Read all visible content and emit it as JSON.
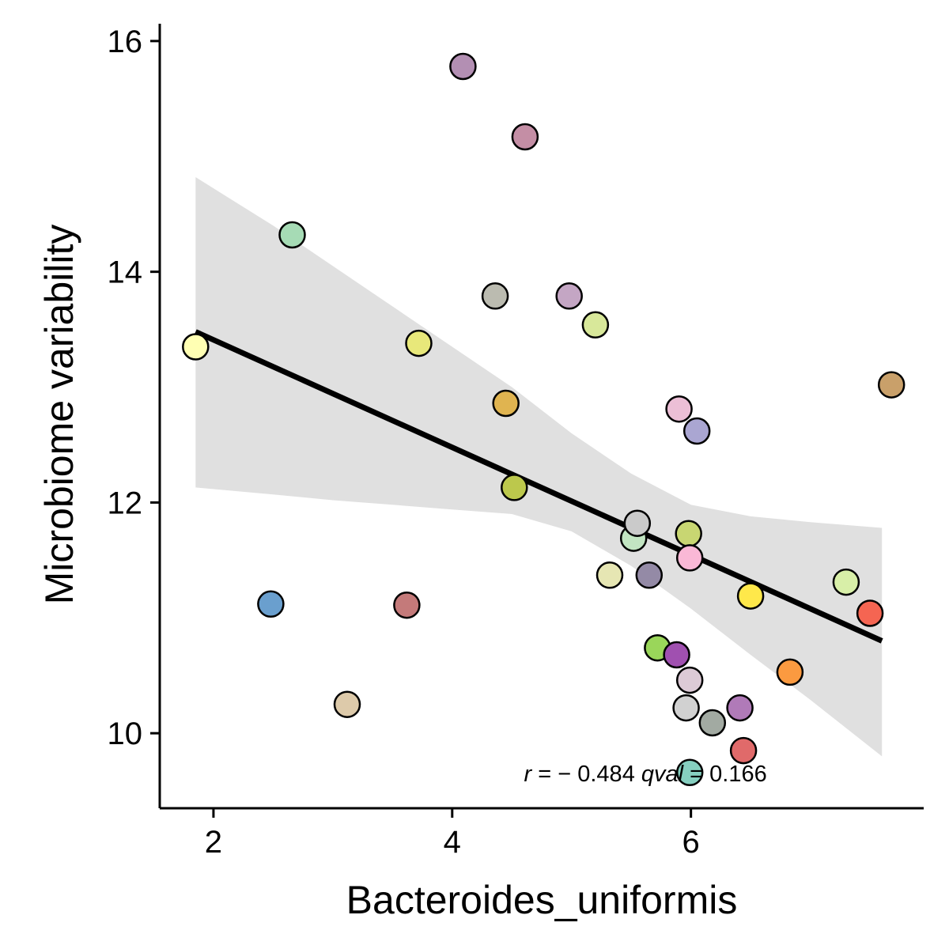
{
  "chart_data": {
    "type": "scatter",
    "xlabel": "Bacteroides_uniformis",
    "ylabel": "Microbiome variability",
    "xlim": [
      1.55,
      7.95
    ],
    "ylim": [
      9.35,
      16.15
    ],
    "xticks": [
      2,
      4,
      6
    ],
    "yticks": [
      10,
      12,
      14,
      16
    ],
    "grid": false,
    "legend": "none",
    "annotation": {
      "r_symbol": "r",
      "r_text": " = − 0.484 ",
      "q_symbol": "qval",
      "q_text": " = 0.166",
      "x": 5.95,
      "y": 9.66
    },
    "fit": {
      "x": [
        1.85,
        7.6
      ],
      "y": [
        13.48,
        10.8
      ]
    },
    "confidence_band": {
      "x": [
        1.85,
        2.5,
        3.0,
        3.5,
        4.0,
        4.5,
        5.0,
        5.5,
        6.0,
        6.5,
        7.0,
        7.6
      ],
      "upper": [
        14.82,
        14.4,
        14.05,
        13.7,
        13.35,
        13.0,
        12.6,
        12.25,
        11.98,
        11.88,
        11.83,
        11.78
      ],
      "lower": [
        12.13,
        12.07,
        12.02,
        11.98,
        11.94,
        11.9,
        11.75,
        11.45,
        11.08,
        10.68,
        10.29,
        9.8
      ]
    },
    "points": [
      {
        "x": 1.85,
        "y": 13.35,
        "color": "#ffffb3"
      },
      {
        "x": 2.48,
        "y": 11.12,
        "color": "#6a9fce"
      },
      {
        "x": 2.66,
        "y": 14.32,
        "color": "#a6dbb5"
      },
      {
        "x": 3.12,
        "y": 10.25,
        "color": "#ddcaaa"
      },
      {
        "x": 3.62,
        "y": 11.11,
        "color": "#c47a7a"
      },
      {
        "x": 3.72,
        "y": 13.38,
        "color": "#e8e87a"
      },
      {
        "x": 4.09,
        "y": 15.78,
        "color": "#b38fb3"
      },
      {
        "x": 4.36,
        "y": 13.79,
        "color": "#bbbbb0"
      },
      {
        "x": 4.45,
        "y": 12.86,
        "color": "#e0b450"
      },
      {
        "x": 4.52,
        "y": 12.13,
        "color": "#bcc84c"
      },
      {
        "x": 4.61,
        "y": 15.17,
        "color": "#c48ea5"
      },
      {
        "x": 4.98,
        "y": 13.79,
        "color": "#c4a6c4"
      },
      {
        "x": 5.2,
        "y": 13.54,
        "color": "#d8e89a"
      },
      {
        "x": 5.32,
        "y": 11.37,
        "color": "#e6e6b3"
      },
      {
        "x": 5.52,
        "y": 11.69,
        "color": "#c2e5c2"
      },
      {
        "x": 5.55,
        "y": 11.82,
        "color": "#cacaca"
      },
      {
        "x": 5.65,
        "y": 11.37,
        "color": "#948aa6"
      },
      {
        "x": 5.72,
        "y": 10.74,
        "color": "#9ad65a"
      },
      {
        "x": 5.88,
        "y": 10.68,
        "color": "#a050b0"
      },
      {
        "x": 5.9,
        "y": 12.81,
        "color": "#ecbfd6"
      },
      {
        "x": 5.96,
        "y": 10.22,
        "color": "#d1d1d1"
      },
      {
        "x": 5.98,
        "y": 11.73,
        "color": "#c8d672"
      },
      {
        "x": 5.99,
        "y": 11.52,
        "color": "#fab8d6"
      },
      {
        "x": 5.99,
        "y": 10.46,
        "color": "#dccad6"
      },
      {
        "x": 5.99,
        "y": 9.66,
        "color": "#86cfc0"
      },
      {
        "x": 6.05,
        "y": 12.62,
        "color": "#aaa6d2"
      },
      {
        "x": 6.18,
        "y": 10.09,
        "color": "#a2aaa2"
      },
      {
        "x": 6.41,
        "y": 10.22,
        "color": "#b07ab8"
      },
      {
        "x": 6.44,
        "y": 9.85,
        "color": "#e06a6a"
      },
      {
        "x": 6.5,
        "y": 11.19,
        "color": "#ffe84a"
      },
      {
        "x": 6.83,
        "y": 10.53,
        "color": "#fb9a40"
      },
      {
        "x": 7.3,
        "y": 11.31,
        "color": "#d8efa8"
      },
      {
        "x": 7.5,
        "y": 11.04,
        "color": "#f56552"
      },
      {
        "x": 7.68,
        "y": 13.02,
        "color": "#c9a06a"
      }
    ]
  }
}
